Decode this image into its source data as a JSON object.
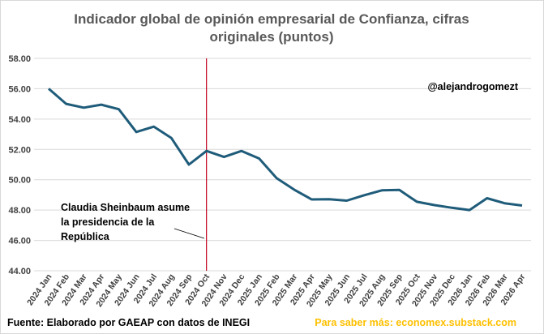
{
  "chart_data": {
    "type": "line",
    "title_lines": [
      "Indicador global de opinión empresarial de Confianza, cifras",
      "originales (puntos)"
    ],
    "handle": "@alejandrogomezt",
    "annotation_lines": [
      "Claudia Sheinbaum asume",
      "la presidencia de la",
      "República"
    ],
    "marker_category": "2024 Oct",
    "source": "Fuente: Elaborado por GAEAP con datos de INEGI",
    "more_info": "Para saber más: economex.substack.com",
    "ylim": [
      44,
      58
    ],
    "yticks": [
      "44.00",
      "46.00",
      "48.00",
      "50.00",
      "52.00",
      "54.00",
      "56.00",
      "58.00"
    ],
    "grid": "horizontal",
    "line_color": "#1f5c7a",
    "marker_color": "#c0001f",
    "categories": [
      "2024 Jan",
      "2024 Feb",
      "2024 Mar",
      "2024 Apr",
      "2024 May",
      "2024 Jun",
      "2024 Jul",
      "2024 Aug",
      "2024 Sep",
      "2024 Oct",
      "2024 Nov",
      "2024 Dec",
      "2025 Jan",
      "2025 Feb",
      "2025 Mar",
      "2025 Apr",
      "2025 May",
      "2025 Jun",
      "2025 Jul",
      "2025 Aug",
      "2025 Sep",
      "2025 Oct",
      "2025 Nov",
      "2025 Dec",
      "2026 Jan",
      "2026 Feb",
      "2026 Mar",
      "2026 Apr"
    ],
    "values": [
      56.0,
      55.0,
      54.75,
      54.95,
      54.65,
      53.15,
      53.5,
      52.75,
      51.0,
      51.9,
      51.5,
      51.9,
      51.4,
      50.1,
      49.35,
      48.7,
      48.72,
      48.62,
      48.98,
      49.3,
      49.33,
      48.55,
      48.33,
      48.15,
      48.0,
      48.78,
      48.45,
      48.3
    ]
  }
}
